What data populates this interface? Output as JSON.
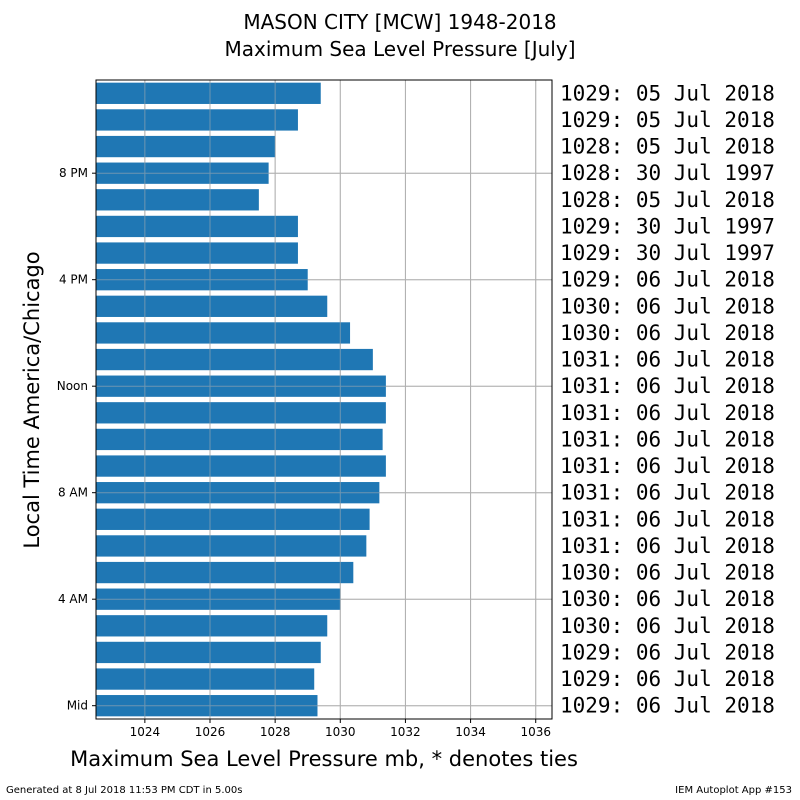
{
  "title_line1": "MASON CITY [MCW] 1948-2018",
  "title_line2": "Maximum Sea Level Pressure [July]",
  "footer_left": "Generated at 8 Jul 2018 11:53 PM CDT in 5.00s",
  "footer_right": "IEM Autoplot App #153",
  "chart_data": {
    "type": "bar",
    "orientation": "horizontal",
    "xlabel": "Maximum Sea Level Pressure mb, * denotes ties",
    "ylabel": "Local Time America/Chicago",
    "xlim": [
      1022.5,
      1036.5
    ],
    "ylim": [
      -0.5,
      23.5
    ],
    "grid": true,
    "bar_color": "#1f77b4",
    "x_ticks": [
      1024,
      1026,
      1028,
      1030,
      1032,
      1034,
      1036
    ],
    "y_ticks": [
      {
        "hour": 0,
        "label": "Mid"
      },
      {
        "hour": 4,
        "label": "4 AM"
      },
      {
        "hour": 8,
        "label": "8 AM"
      },
      {
        "hour": 12,
        "label": "Noon"
      },
      {
        "hour": 16,
        "label": "4 PM"
      },
      {
        "hour": 20,
        "label": "8 PM"
      }
    ],
    "hours": [
      0,
      1,
      2,
      3,
      4,
      5,
      6,
      7,
      8,
      9,
      10,
      11,
      12,
      13,
      14,
      15,
      16,
      17,
      18,
      19,
      20,
      21,
      22,
      23
    ],
    "values": [
      1029.3,
      1029.2,
      1029.4,
      1029.6,
      1030.0,
      1030.4,
      1030.8,
      1030.9,
      1031.2,
      1031.4,
      1031.3,
      1031.4,
      1031.4,
      1031.0,
      1030.3,
      1029.6,
      1029.0,
      1028.7,
      1028.7,
      1027.5,
      1027.8,
      1028.0,
      1028.7,
      1029.4
    ],
    "annotations": [
      "1029: 06 Jul 2018",
      "1029: 06 Jul 2018",
      "1029: 06 Jul 2018",
      "1030: 06 Jul 2018",
      "1030: 06 Jul 2018",
      "1030: 06 Jul 2018",
      "1031: 06 Jul 2018",
      "1031: 06 Jul 2018",
      "1031: 06 Jul 2018",
      "1031: 06 Jul 2018",
      "1031: 06 Jul 2018",
      "1031: 06 Jul 2018",
      "1031: 06 Jul 2018",
      "1031: 06 Jul 2018",
      "1030: 06 Jul 2018",
      "1030: 06 Jul 2018",
      "1029: 06 Jul 2018",
      "1029: 30 Jul 1997",
      "1029: 30 Jul 1997",
      "1028: 05 Jul 2018",
      "1028: 30 Jul 1997",
      "1028: 05 Jul 2018",
      "1029: 05 Jul 2018",
      "1029: 05 Jul 2018"
    ]
  }
}
